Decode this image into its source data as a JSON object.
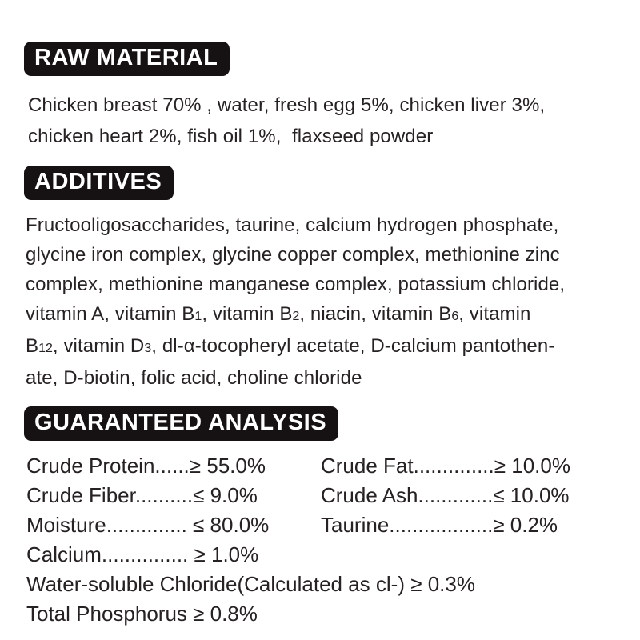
{
  "colors": {
    "heading_bg": "#161112",
    "heading_text": "#ffffff",
    "body_text": "#262122",
    "page_bg": "#ffffff"
  },
  "raw_material": {
    "heading": "RAW MATERIAL",
    "lines": [
      "Chicken breast 70% , water, fresh egg 5%, chicken liver 3%,",
      "chicken heart 2%, fish oil 1%,  flaxseed powder"
    ]
  },
  "additives": {
    "heading": "ADDITIVES",
    "lines": [
      [
        {
          "t": "Fructooligosaccharides, taurine, calcium hydrogen phosphate,"
        }
      ],
      [
        {
          "t": "glycine iron complex, glycine copper complex, methionine zinc"
        }
      ],
      [
        {
          "t": "complex, methionine manganese complex, potassium chloride,"
        }
      ],
      [
        {
          "t": "vitamin A, vitamin B"
        },
        {
          "t": "1",
          "sub": true
        },
        {
          "t": ", vitamin B"
        },
        {
          "t": "2",
          "sub": true
        },
        {
          "t": ", niacin, vitamin B"
        },
        {
          "t": "6",
          "sub": true
        },
        {
          "t": ", vitamin"
        }
      ],
      [
        {
          "t": "B"
        },
        {
          "t": "12",
          "sub": true
        },
        {
          "t": ", vitamin D"
        },
        {
          "t": "3",
          "sub": true
        },
        {
          "t": ", dl-α-tocopheryl acetate, D-calcium pantothen-"
        }
      ],
      [
        {
          "t": "ate, D-biotin, folic acid, choline chloride"
        }
      ]
    ]
  },
  "guaranteed_analysis": {
    "heading": "GUARANTEED ANALYSIS",
    "left": [
      "Crude Protein......≥ 55.0%",
      "Crude Fiber..........≤ 9.0%",
      "Moisture.............. ≤ 80.0%",
      "Calcium............... ≥ 1.0%"
    ],
    "right": [
      "Crude Fat..............≥ 10.0%",
      "Crude Ash.............≤ 10.0%",
      "Taurine..................≥ 0.2%"
    ],
    "full": [
      "Water-soluble Chloride(Calculated as cl-) ≥ 0.3%",
      "Total Phosphorus ≥ 0.8%"
    ]
  }
}
